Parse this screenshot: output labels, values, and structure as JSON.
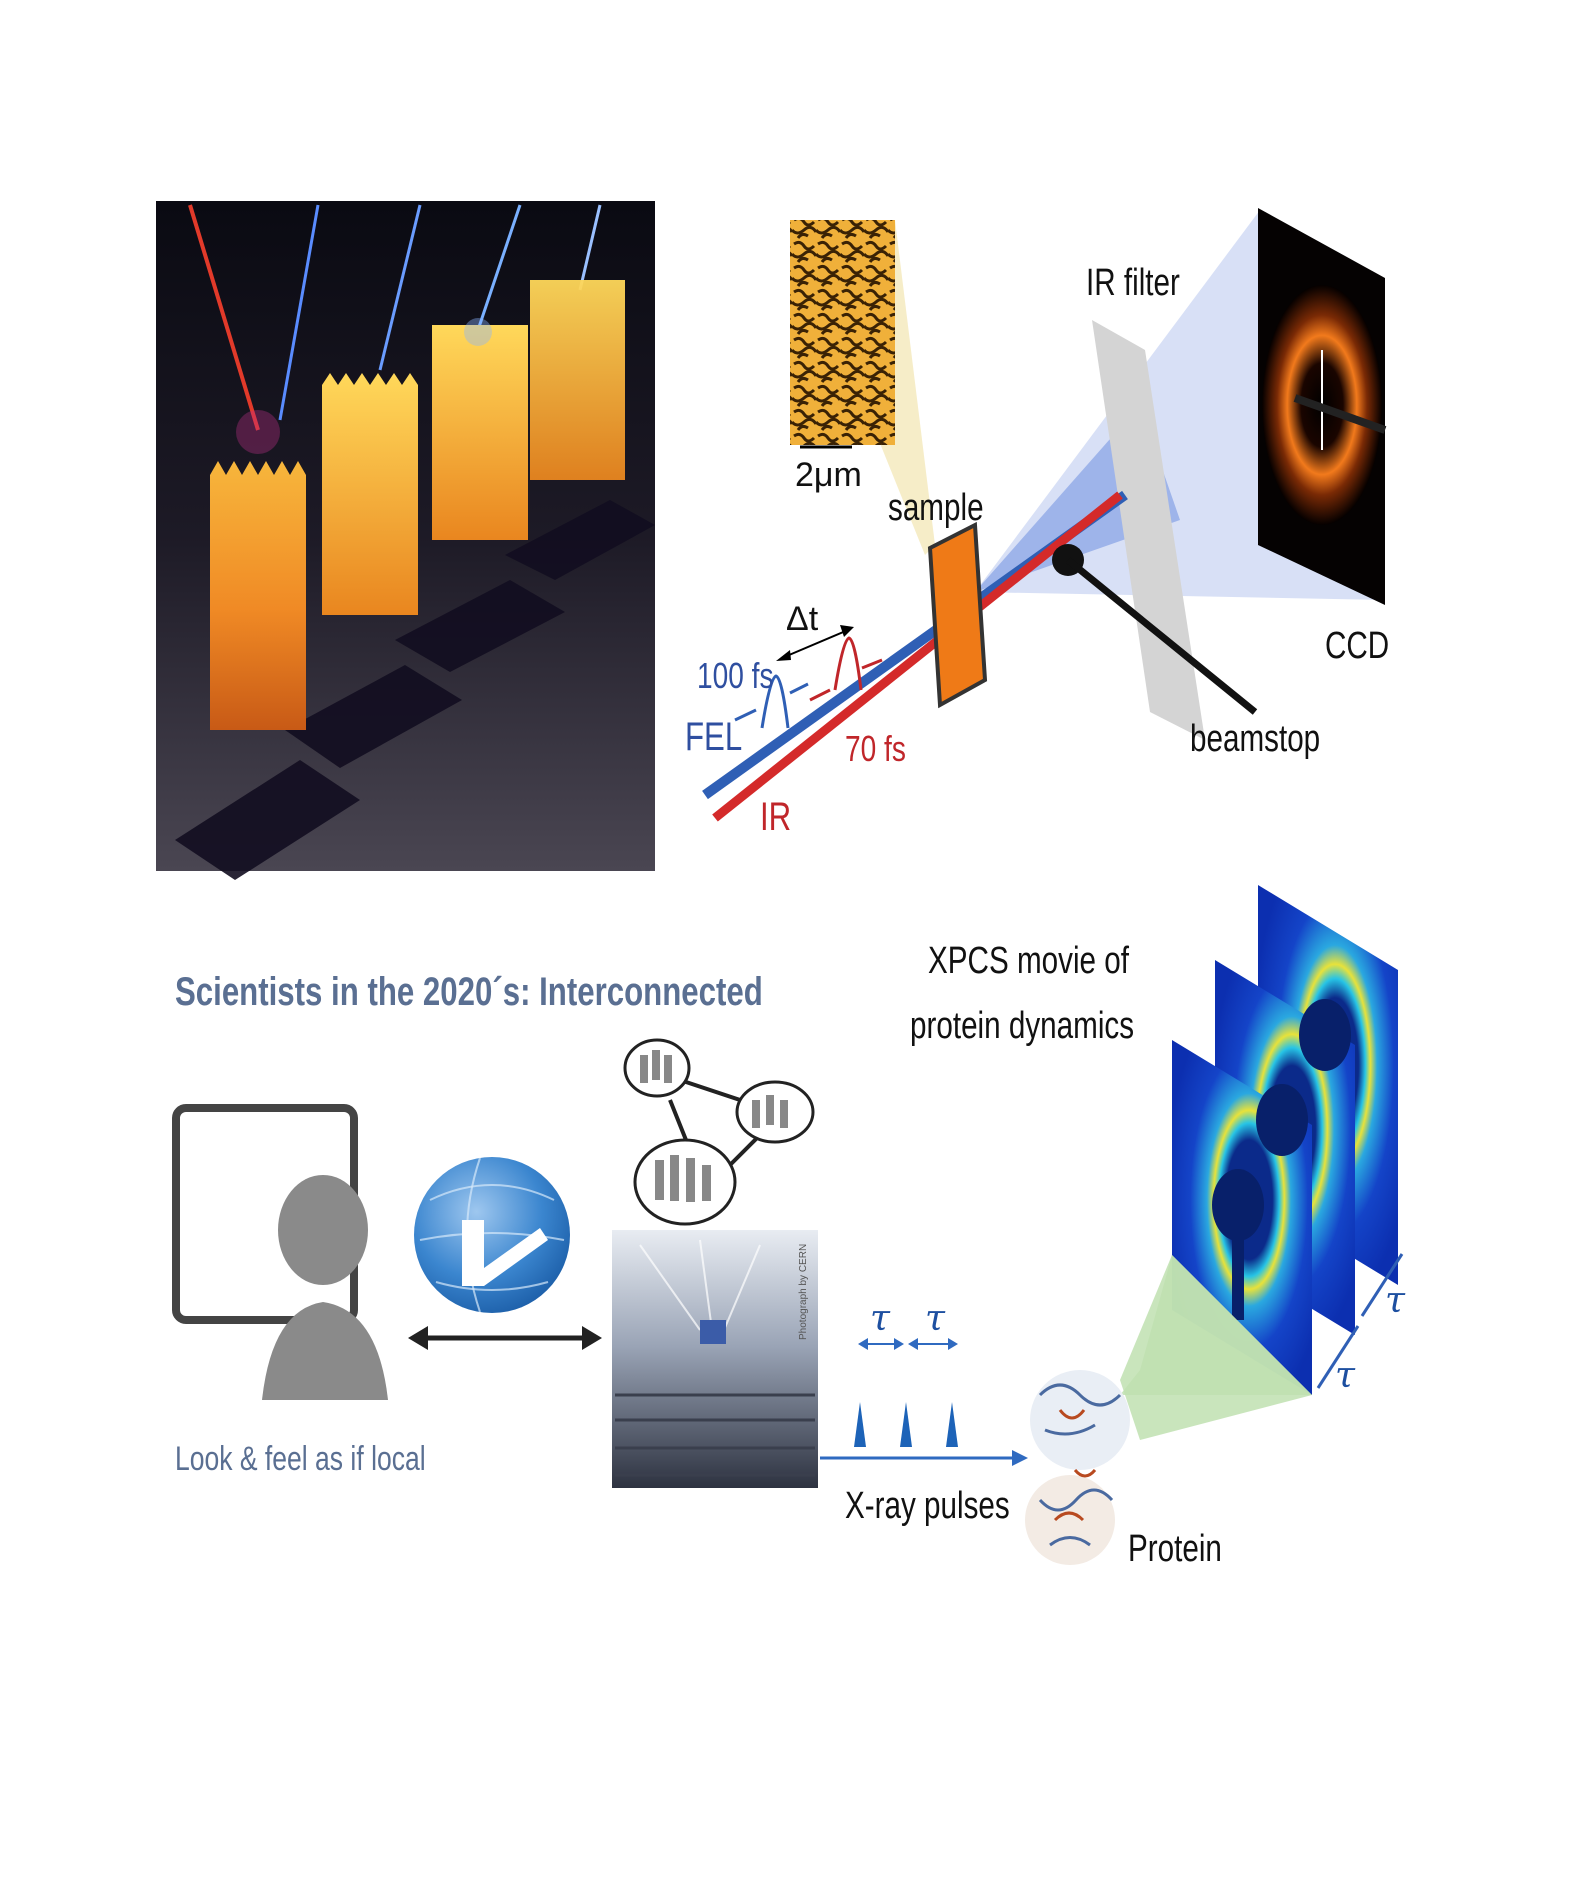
{
  "panels": {
    "tl": {},
    "tr": {
      "scale_bar": "2μm",
      "sample": "sample",
      "ir_filter": "IR filter",
      "ccd": "CCD",
      "beamstop": "beamstop",
      "delta_t": "Δt",
      "fel_pulse": "100 fs",
      "fel": "FEL",
      "ir_pulse": "70 fs",
      "ir": "IR"
    },
    "bl": {
      "title": "Scientists in the 2020´s: Interconnected",
      "caption": "Look & feel as if local",
      "photo_credit": "Photograph by CERN"
    },
    "br": {
      "title_line1": "XPCS movie of",
      "title_line2": "protein dynamics",
      "tau": "τ",
      "xray": "X-ray pulses",
      "protein": "Protein"
    }
  },
  "colors": {
    "fel_beam": "#2f5fb5",
    "ir_beam": "#d42a2a",
    "text_blue": "#2f4fa0",
    "text_red": "#c0262a",
    "title_blue": "#5a6f92",
    "xray_blue": "#1d63b8"
  },
  "icons": [
    "monitor-icon",
    "person-icon",
    "globe-logo-icon",
    "people-network-icon"
  ]
}
